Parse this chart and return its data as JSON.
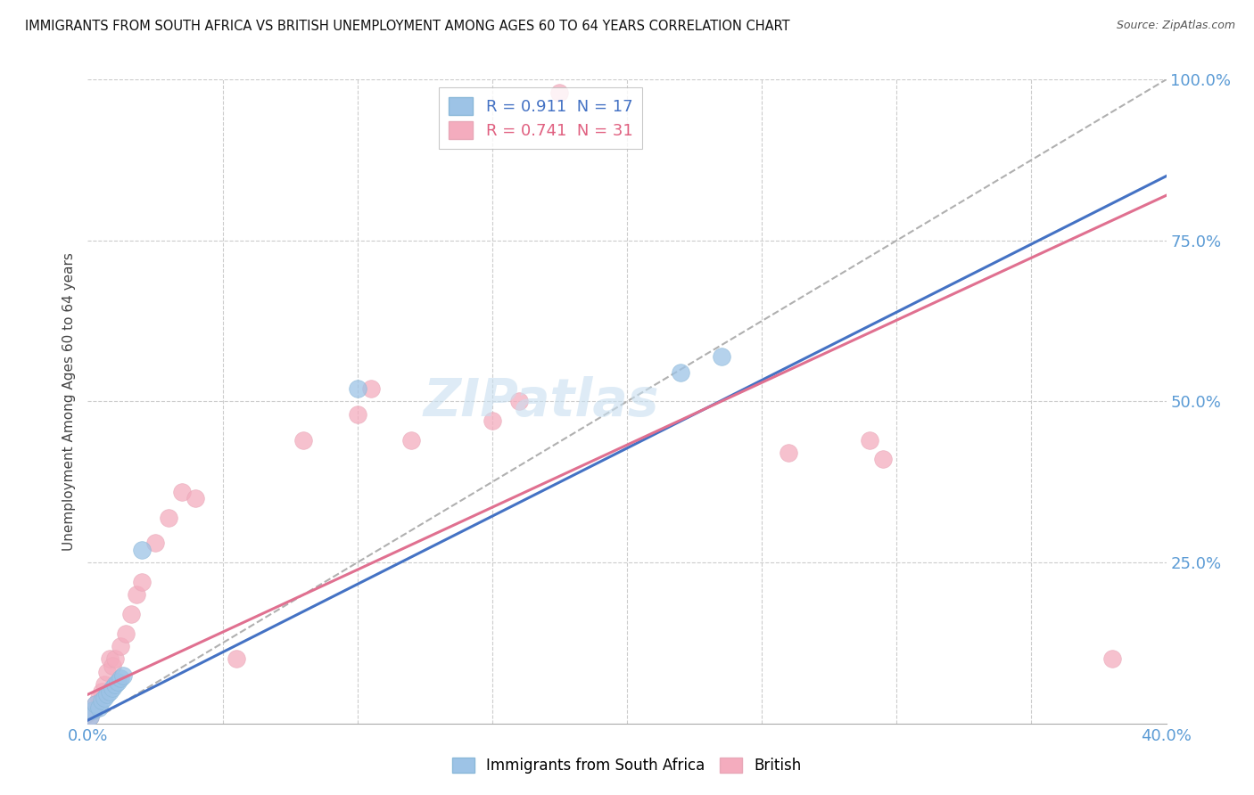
{
  "title": "IMMIGRANTS FROM SOUTH AFRICA VS BRITISH UNEMPLOYMENT AMONG AGES 60 TO 64 YEARS CORRELATION CHART",
  "source": "Source: ZipAtlas.com",
  "ylabel": "Unemployment Among Ages 60 to 64 years",
  "R_blue": 0.911,
  "N_blue": 17,
  "R_pink": 0.741,
  "N_pink": 31,
  "xlim": [
    0.0,
    0.4
  ],
  "ylim": [
    0.0,
    1.0
  ],
  "xticks": [
    0.0,
    0.05,
    0.1,
    0.15,
    0.2,
    0.25,
    0.3,
    0.35,
    0.4
  ],
  "yticks": [
    0.0,
    0.25,
    0.5,
    0.75,
    1.0
  ],
  "blue_color": "#9dc3e6",
  "pink_color": "#f4acbe",
  "blue_line_color": "#4472c4",
  "pink_line_color": "#e07090",
  "gray_dash_color": "#b0b0b0",
  "watermark_color": "#c8dff0",
  "blue_scatter_x": [
    0.001,
    0.002,
    0.003,
    0.004,
    0.005,
    0.006,
    0.007,
    0.008,
    0.009,
    0.01,
    0.011,
    0.012,
    0.013,
    0.02,
    0.1,
    0.22,
    0.235
  ],
  "blue_scatter_y": [
    0.01,
    0.02,
    0.03,
    0.025,
    0.035,
    0.04,
    0.045,
    0.05,
    0.055,
    0.06,
    0.065,
    0.07,
    0.075,
    0.27,
    0.52,
    0.545,
    0.57
  ],
  "pink_scatter_x": [
    0.001,
    0.002,
    0.003,
    0.004,
    0.005,
    0.006,
    0.007,
    0.008,
    0.009,
    0.01,
    0.012,
    0.014,
    0.016,
    0.018,
    0.02,
    0.025,
    0.03,
    0.035,
    0.04,
    0.055,
    0.08,
    0.1,
    0.105,
    0.12,
    0.15,
    0.16,
    0.26,
    0.29,
    0.295,
    0.38,
    0.175
  ],
  "pink_scatter_y": [
    0.01,
    0.02,
    0.03,
    0.04,
    0.05,
    0.06,
    0.08,
    0.1,
    0.09,
    0.1,
    0.12,
    0.14,
    0.17,
    0.2,
    0.22,
    0.28,
    0.32,
    0.36,
    0.35,
    0.1,
    0.44,
    0.48,
    0.52,
    0.44,
    0.47,
    0.5,
    0.42,
    0.44,
    0.41,
    0.1,
    0.98
  ],
  "blue_line_x0": 0.0,
  "blue_line_y0": 0.005,
  "blue_line_x1": 0.4,
  "blue_line_y1": 0.85,
  "pink_line_x0": 0.0,
  "pink_line_y0": 0.045,
  "pink_line_x1": 0.4,
  "pink_line_y1": 0.82,
  "gray_line_x0": 0.0,
  "gray_line_y0": 0.0,
  "gray_line_x1": 0.4,
  "gray_line_y1": 1.0,
  "legend_blue_label": "Immigrants from South Africa",
  "legend_pink_label": "British"
}
